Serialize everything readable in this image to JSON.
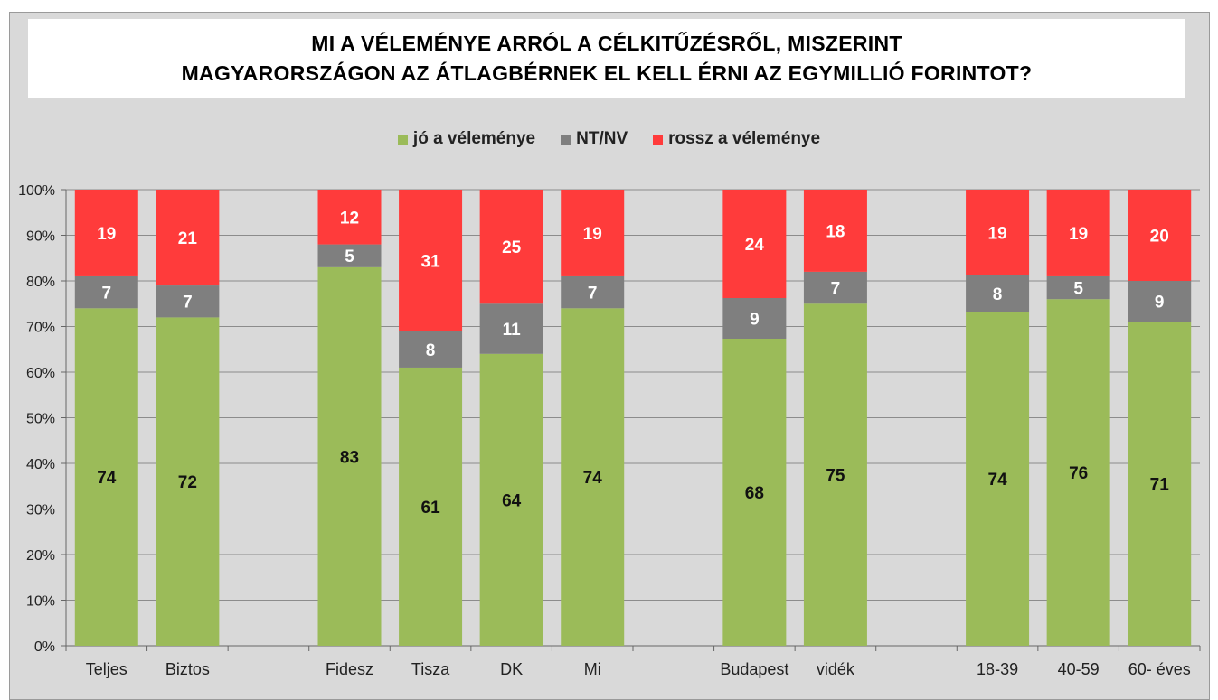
{
  "chart_data": {
    "type": "bar",
    "stacked": true,
    "title_lines": [
      "MI A VÉLEMÉNYE ARRÓL A CÉLKITŰZÉSRŐL, MISZERINT",
      "MAGYARORSZÁGON AZ ÁTLAGBÉRNEK EL KELL ÉRNI AZ EGYMILLIÓ FORINTOT?"
    ],
    "legend_position": "top",
    "grid": true,
    "ylim": [
      0,
      100
    ],
    "yticks": [
      "0%",
      "10%",
      "20%",
      "30%",
      "40%",
      "50%",
      "60%",
      "70%",
      "80%",
      "90%",
      "100%"
    ],
    "groups": [
      [
        "Teljes",
        "Biztos"
      ],
      [
        "Fidesz",
        "Tisza",
        "DK",
        "Mi"
      ],
      [
        "Budapest",
        "vidék"
      ],
      [
        "18-39",
        "40-59",
        "60-  éves"
      ]
    ],
    "categories": [
      "Teljes",
      "Biztos",
      "Fidesz",
      "Tisza",
      "DK",
      "Mi",
      "Budapest",
      "vidék",
      "18-39",
      "40-59",
      "60-  éves"
    ],
    "series": [
      {
        "name": "jó a véleménye",
        "color": "#9bbb59",
        "label_color": "#111111",
        "values": [
          74,
          72,
          83,
          61,
          64,
          74,
          68,
          75,
          74,
          76,
          71
        ]
      },
      {
        "name": "NT/NV",
        "color": "#7f7f7f",
        "label_color": "#ffffff",
        "values": [
          7,
          7,
          5,
          8,
          11,
          7,
          9,
          7,
          8,
          5,
          9
        ]
      },
      {
        "name": "rossz a véleménye",
        "color": "#ff3b3b",
        "label_color": "#ffffff",
        "values": [
          19,
          21,
          12,
          31,
          25,
          19,
          24,
          18,
          19,
          19,
          20
        ]
      }
    ]
  }
}
